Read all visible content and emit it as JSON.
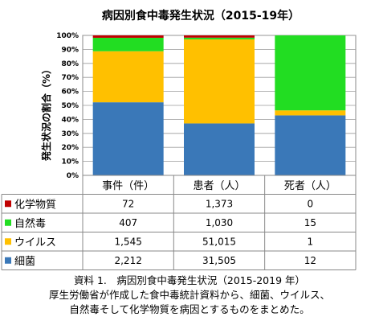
{
  "chart_data": {
    "type": "bar",
    "stacked": "percent",
    "title": "病因別食中毒発生状況（2015-19年）",
    "ylabel": "発生状況の割合（%）",
    "xlabel": "",
    "ylim": [
      0,
      100
    ],
    "y_ticks": [
      "0%",
      "10%",
      "20%",
      "30%",
      "40%",
      "50%",
      "60%",
      "70%",
      "80%",
      "90%",
      "100%"
    ],
    "grid": true,
    "legend": "table-left",
    "categories": [
      "事件（件）",
      "患者（人）",
      "死者（人）"
    ],
    "series": [
      {
        "name": "化学物質",
        "color": "#c00000",
        "values": [
          72,
          1373,
          0
        ],
        "labels": [
          "72",
          "1,373",
          "0"
        ]
      },
      {
        "name": "自然毒",
        "color": "#22dd22",
        "values": [
          407,
          1030,
          15
        ],
        "labels": [
          "407",
          "1,030",
          "15"
        ]
      },
      {
        "name": "ウイルス",
        "color": "#ffc000",
        "values": [
          1545,
          51015,
          1
        ],
        "labels": [
          "1,545",
          "51,015",
          "1"
        ]
      },
      {
        "name": "細菌",
        "color": "#3a78b8",
        "values": [
          2212,
          31505,
          12
        ],
        "labels": [
          "2,212",
          "31,505",
          "12"
        ]
      }
    ]
  },
  "caption": {
    "line1": "資料 1.　病因別食中毒発生状況（2015-2019 年）",
    "line2": "厚生労働省が作成した食中毒統計資料から、細菌、ウイルス、",
    "line3": "自然毒そして化学物質を病因とするものをまとめた。"
  }
}
